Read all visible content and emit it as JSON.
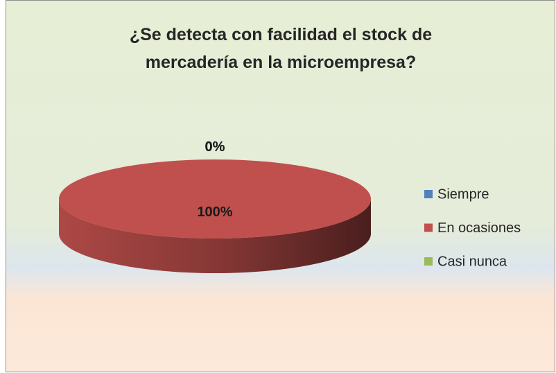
{
  "chart_data": {
    "type": "pie",
    "title": "¿Se detecta con facilidad el stock de mercadería en la microempresa?",
    "categories": [
      "Siempre",
      "En ocasiones",
      "Casi nunca"
    ],
    "values": [
      0,
      100,
      0
    ],
    "value_labels": [
      "0%",
      "100%",
      "0%"
    ],
    "colors": [
      "#4f81bd",
      "#c0504d",
      "#9bbb59"
    ],
    "legend": "right"
  }
}
